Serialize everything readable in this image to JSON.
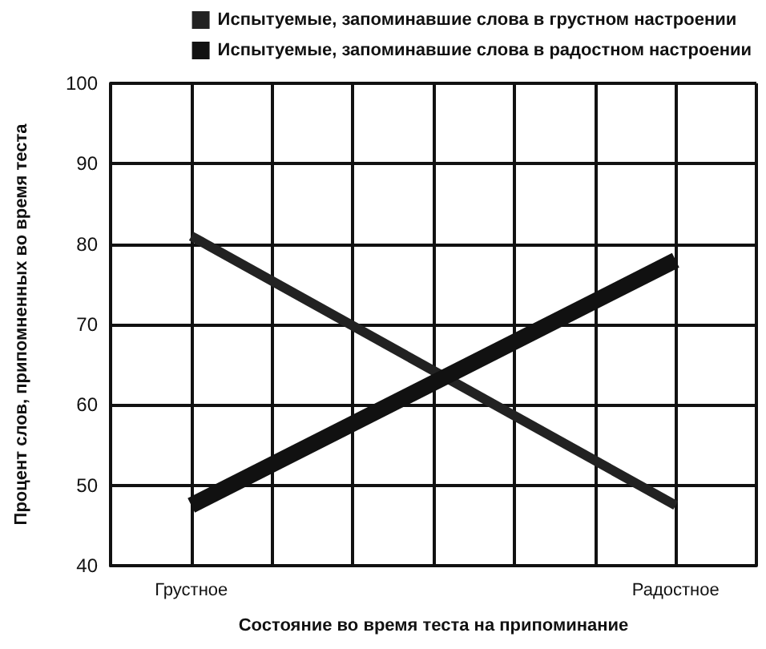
{
  "chart_data": {
    "type": "line",
    "xlabel": "Состояние во время теста на припоминание",
    "ylabel": "Процент слов, припомненных во время теста",
    "categories": [
      null,
      "Грустное",
      null,
      null,
      null,
      null,
      null,
      "Радостное",
      null
    ],
    "series": [
      {
        "name": "Испытуемые, запоминавшие слова в грустном настроении",
        "color": "#222222",
        "values": [
          null,
          81,
          null,
          null,
          null,
          null,
          null,
          47.5,
          null
        ]
      },
      {
        "name": "Испытуемые, запоминавшие слова в радостном настроении",
        "color": "#111111",
        "values": [
          null,
          47.5,
          null,
          null,
          null,
          null,
          null,
          78,
          null
        ]
      }
    ],
    "ylim": [
      40,
      100
    ],
    "yticks": [
      40,
      50,
      60,
      70,
      80,
      90,
      100
    ],
    "grid": true,
    "legend": "top right",
    "marker": "none",
    "line_style": "solid"
  }
}
